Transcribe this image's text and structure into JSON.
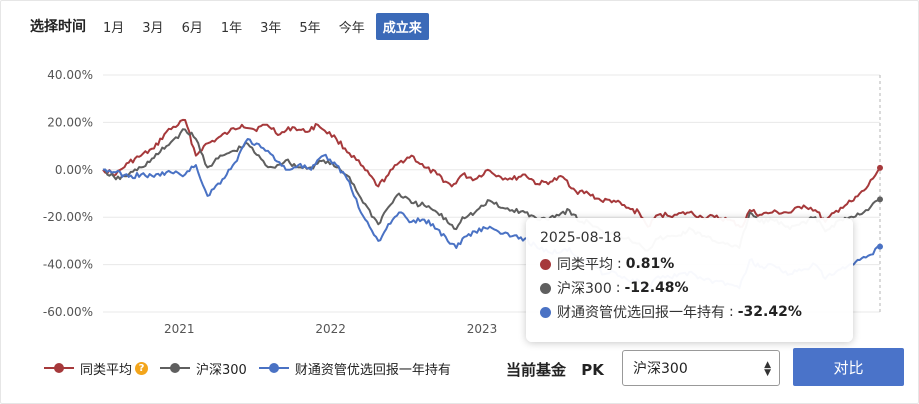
{
  "range_selector": {
    "label": "选择时间",
    "options": [
      "1月",
      "3月",
      "6月",
      "1年",
      "3年",
      "5年",
      "今年",
      "成立来"
    ],
    "active_index": 7
  },
  "colors": {
    "peer_average": "#a6393b",
    "csi300": "#5f5f5f",
    "fund": "#4a72c4",
    "accent": "#3b6ab8"
  },
  "chart_data": {
    "type": "line",
    "ylabel": "",
    "xlabel": "",
    "ylim": [
      -60,
      40
    ],
    "y_ticks": [
      "40.00%",
      "20.00%",
      "0.00%",
      "-20.00%",
      "-40.00%",
      "-60.00%"
    ],
    "y_tick_values": [
      40,
      20,
      0,
      -20,
      -40,
      -60
    ],
    "x_tick_labels": [
      "2021",
      "2022",
      "2023"
    ],
    "x_range": [
      "2020-07-01",
      "2025-08-18"
    ],
    "x_tick_dates": [
      "2021-01-01",
      "2022-01-01",
      "2023-01-01"
    ],
    "grid": true,
    "series": [
      {
        "name": "同类平均",
        "color": "#a6393b",
        "points": [
          [
            "2020-07-01",
            0
          ],
          [
            "2020-08-01",
            -2
          ],
          [
            "2020-09-01",
            3
          ],
          [
            "2020-10-01",
            6
          ],
          [
            "2020-11-01",
            9
          ],
          [
            "2020-12-01",
            16
          ],
          [
            "2021-01-15",
            21
          ],
          [
            "2021-02-10",
            6
          ],
          [
            "2021-03-01",
            10
          ],
          [
            "2021-04-01",
            13
          ],
          [
            "2021-05-01",
            16
          ],
          [
            "2021-06-01",
            19
          ],
          [
            "2021-07-01",
            17
          ],
          [
            "2021-08-01",
            19
          ],
          [
            "2021-09-01",
            15
          ],
          [
            "2021-10-01",
            18
          ],
          [
            "2021-11-01",
            16
          ],
          [
            "2021-12-01",
            19
          ],
          [
            "2022-01-15",
            13
          ],
          [
            "2022-02-15",
            7
          ],
          [
            "2022-03-15",
            2
          ],
          [
            "2022-04-26",
            -7
          ],
          [
            "2022-05-15",
            -3
          ],
          [
            "2022-06-15",
            3
          ],
          [
            "2022-07-15",
            6
          ],
          [
            "2022-08-15",
            1
          ],
          [
            "2022-09-15",
            -2
          ],
          [
            "2022-10-20",
            -7
          ],
          [
            "2022-11-15",
            -2
          ],
          [
            "2022-12-15",
            -4
          ],
          [
            "2023-01-15",
            0
          ],
          [
            "2023-02-15",
            -3
          ],
          [
            "2023-03-15",
            -4
          ],
          [
            "2023-04-15",
            -2
          ],
          [
            "2023-05-15",
            -6
          ],
          [
            "2023-06-15",
            -5
          ],
          [
            "2023-07-15",
            -3
          ],
          [
            "2023-08-15",
            -9
          ],
          [
            "2023-09-15",
            -10
          ],
          [
            "2023-10-15",
            -13
          ],
          [
            "2023-11-15",
            -13
          ],
          [
            "2023-12-15",
            -16
          ],
          [
            "2024-01-15",
            -18
          ],
          [
            "2024-02-05",
            -24
          ],
          [
            "2024-03-01",
            -19
          ],
          [
            "2024-04-15",
            -19
          ],
          [
            "2024-05-15",
            -18
          ],
          [
            "2024-06-15",
            -20
          ],
          [
            "2024-07-15",
            -20
          ],
          [
            "2024-08-15",
            -21
          ],
          [
            "2024-09-20",
            -24
          ],
          [
            "2024-10-08",
            -17
          ],
          [
            "2024-11-01",
            -19
          ],
          [
            "2024-12-01",
            -18
          ],
          [
            "2025-01-15",
            -18
          ],
          [
            "2025-02-15",
            -15
          ],
          [
            "2025-03-15",
            -17
          ],
          [
            "2025-04-08",
            -22
          ],
          [
            "2025-05-15",
            -16
          ],
          [
            "2025-06-15",
            -13
          ],
          [
            "2025-07-15",
            -8
          ],
          [
            "2025-08-18",
            0.81
          ]
        ]
      },
      {
        "name": "沪深300",
        "color": "#5f5f5f",
        "points": [
          [
            "2020-07-01",
            0
          ],
          [
            "2020-08-01",
            -4
          ],
          [
            "2020-09-01",
            -2
          ],
          [
            "2020-10-01",
            1
          ],
          [
            "2020-11-01",
            5
          ],
          [
            "2020-12-01",
            10
          ],
          [
            "2021-01-15",
            17
          ],
          [
            "2021-02-10",
            13
          ],
          [
            "2021-03-10",
            1
          ],
          [
            "2021-04-15",
            6
          ],
          [
            "2021-05-15",
            8
          ],
          [
            "2021-06-15",
            11
          ],
          [
            "2021-07-28",
            2
          ],
          [
            "2021-08-15",
            1
          ],
          [
            "2021-09-15",
            4
          ],
          [
            "2021-10-15",
            1
          ],
          [
            "2021-11-15",
            1
          ],
          [
            "2021-12-15",
            4
          ],
          [
            "2022-01-15",
            1
          ],
          [
            "2022-02-15",
            -3
          ],
          [
            "2022-03-15",
            -12
          ],
          [
            "2022-04-26",
            -23
          ],
          [
            "2022-05-15",
            -17
          ],
          [
            "2022-06-15",
            -10
          ],
          [
            "2022-07-15",
            -14
          ],
          [
            "2022-08-15",
            -15
          ],
          [
            "2022-09-15",
            -18
          ],
          [
            "2022-10-31",
            -25
          ],
          [
            "2022-11-15",
            -20
          ],
          [
            "2022-12-15",
            -18
          ],
          [
            "2023-01-20",
            -13
          ],
          [
            "2023-02-15",
            -16
          ],
          [
            "2023-03-15",
            -17
          ],
          [
            "2023-04-15",
            -18
          ],
          [
            "2023-05-15",
            -21
          ],
          [
            "2023-06-15",
            -20
          ],
          [
            "2023-07-31",
            -17
          ],
          [
            "2023-08-25",
            -22
          ],
          [
            "2023-09-15",
            -22
          ],
          [
            "2023-10-23",
            -27
          ],
          [
            "2023-11-15",
            -26
          ],
          [
            "2023-12-15",
            -29
          ],
          [
            "2024-01-15",
            -31
          ],
          [
            "2024-02-05",
            -34
          ],
          [
            "2024-03-01",
            -29
          ],
          [
            "2024-04-15",
            -28
          ],
          [
            "2024-05-20",
            -25
          ],
          [
            "2024-06-15",
            -28
          ],
          [
            "2024-07-15",
            -30
          ],
          [
            "2024-08-15",
            -31
          ],
          [
            "2024-09-13",
            -33
          ],
          [
            "2024-10-08",
            -18
          ],
          [
            "2024-11-01",
            -22
          ],
          [
            "2024-12-01",
            -21
          ],
          [
            "2025-01-13",
            -25
          ],
          [
            "2025-02-15",
            -22
          ],
          [
            "2025-03-15",
            -20
          ],
          [
            "2025-04-08",
            -26
          ],
          [
            "2025-05-15",
            -21
          ],
          [
            "2025-06-15",
            -20
          ],
          [
            "2025-07-15",
            -17
          ],
          [
            "2025-08-18",
            -12.48
          ]
        ]
      },
      {
        "name": "财通资管优选回报一年持有",
        "color": "#4a72c4",
        "points": [
          [
            "2020-07-01",
            0
          ],
          [
            "2020-08-01",
            -1
          ],
          [
            "2020-09-01",
            -3
          ],
          [
            "2020-10-01",
            -2
          ],
          [
            "2020-11-01",
            -3
          ],
          [
            "2020-12-01",
            -1
          ],
          [
            "2021-01-15",
            -2
          ],
          [
            "2021-02-10",
            2
          ],
          [
            "2021-03-10",
            -11
          ],
          [
            "2021-04-15",
            -4
          ],
          [
            "2021-05-15",
            3
          ],
          [
            "2021-06-15",
            13
          ],
          [
            "2021-07-28",
            8
          ],
          [
            "2021-08-15",
            6
          ],
          [
            "2021-09-15",
            0
          ],
          [
            "2021-10-15",
            2
          ],
          [
            "2021-11-15",
            0
          ],
          [
            "2021-12-15",
            6
          ],
          [
            "2022-01-15",
            2
          ],
          [
            "2022-02-15",
            -5
          ],
          [
            "2022-03-15",
            -18
          ],
          [
            "2022-04-26",
            -30
          ],
          [
            "2022-05-15",
            -25
          ],
          [
            "2022-06-15",
            -18
          ],
          [
            "2022-07-15",
            -22
          ],
          [
            "2022-08-15",
            -21
          ],
          [
            "2022-09-15",
            -25
          ],
          [
            "2022-10-31",
            -33
          ],
          [
            "2022-11-15",
            -29
          ],
          [
            "2022-12-15",
            -26
          ],
          [
            "2023-01-20",
            -24
          ],
          [
            "2023-02-15",
            -27
          ],
          [
            "2023-03-15",
            -28
          ],
          [
            "2023-04-15",
            -29
          ],
          [
            "2023-05-15",
            -33
          ],
          [
            "2023-06-15",
            -35
          ],
          [
            "2023-07-31",
            -33
          ],
          [
            "2023-08-25",
            -38
          ],
          [
            "2023-09-15",
            -38
          ],
          [
            "2023-10-23",
            -44
          ],
          [
            "2023-11-15",
            -43
          ],
          [
            "2023-12-15",
            -46
          ],
          [
            "2024-01-15",
            -47
          ],
          [
            "2024-02-05",
            -51
          ],
          [
            "2024-03-01",
            -45
          ],
          [
            "2024-04-15",
            -45
          ],
          [
            "2024-05-20",
            -43
          ],
          [
            "2024-06-15",
            -46
          ],
          [
            "2024-07-15",
            -47
          ],
          [
            "2024-08-15",
            -48
          ],
          [
            "2024-09-13",
            -50
          ],
          [
            "2024-10-08",
            -38
          ],
          [
            "2024-11-01",
            -41
          ],
          [
            "2024-12-01",
            -40
          ],
          [
            "2025-01-13",
            -44
          ],
          [
            "2025-02-15",
            -42
          ],
          [
            "2025-03-15",
            -40
          ],
          [
            "2025-04-08",
            -46
          ],
          [
            "2025-05-15",
            -42
          ],
          [
            "2025-06-15",
            -40
          ],
          [
            "2025-07-15",
            -37
          ],
          [
            "2025-08-18",
            -32.42
          ]
        ]
      }
    ],
    "tooltip": {
      "date": "2025-08-18",
      "rows": [
        {
          "name": "同类平均",
          "value": "0.81%"
        },
        {
          "name": "沪深300",
          "value": "-12.48%"
        },
        {
          "name": "财通资管优选回报一年持有",
          "value": "-32.42%"
        }
      ]
    }
  },
  "legend": {
    "items": [
      "同类平均",
      "沪深300",
      "财通资管优选回报一年持有"
    ]
  },
  "compare": {
    "current_fund_label": "当前基金",
    "pk_label": "PK",
    "selected": "沪深300",
    "button_label": "对比"
  }
}
